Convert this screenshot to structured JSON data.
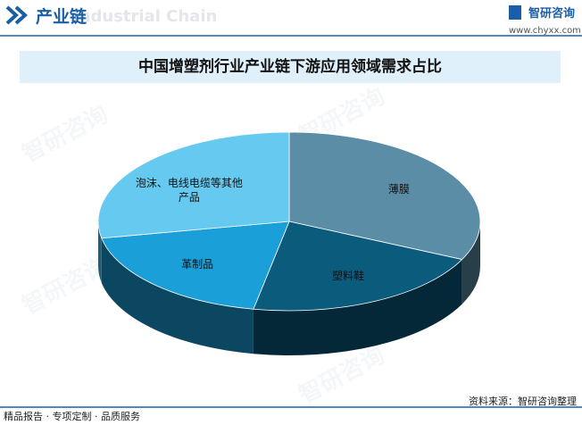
{
  "header": {
    "title": "产业链",
    "subtitle": "Industrial Chain",
    "brand": "智研咨询",
    "url": "www.chyxx.com"
  },
  "watermark": "智研咨询",
  "chart_data": {
    "type": "pie",
    "title": "中国增塑剂行业产业链下游应用领域需求占比",
    "categories": [
      "薄膜",
      "塑料鞋",
      "革制品",
      "泡沫、电线电缆等其他产品"
    ],
    "values": [
      32,
      21,
      19,
      28
    ],
    "colors": [
      "#5b8ea6",
      "#0b5b7c",
      "#1a9fd8",
      "#66c9ef"
    ]
  },
  "footer": {
    "left": "精品报告 · 专项定制 · 品质服务",
    "source": "资料来源：智研咨询整理"
  }
}
